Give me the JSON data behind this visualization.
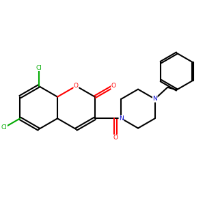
{
  "bg_color": "#ffffff",
  "atom_colors": {
    "C": "#000000",
    "O": "#ff0000",
    "N": "#0000cc",
    "Cl": "#00aa00"
  },
  "bond_color": "#000000",
  "figsize": [
    3.0,
    3.0
  ],
  "dpi": 100,
  "unit": 0.42
}
